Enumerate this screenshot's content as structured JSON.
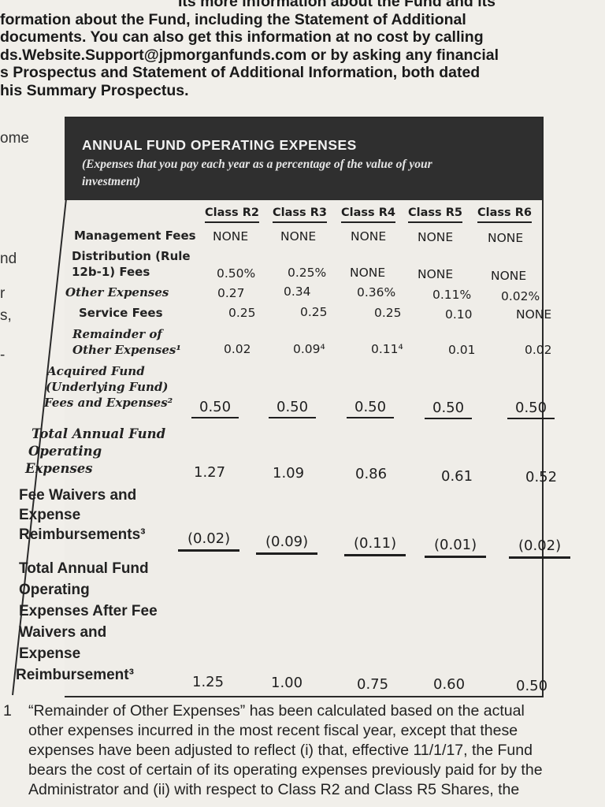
{
  "intro_lines": [
    "Its more information about the Fund and its",
    "formation about the Fund, including the Statement of Additional",
    "documents. You can also get this information at no cost by calling",
    "ds.Website.Support@jpmorganfunds.com or by asking any financial",
    "s Prospectus and Statement of Additional Information, both dated",
    "his Summary Prospectus."
  ],
  "left_fragments": [
    "ome",
    "nd",
    "r",
    "s,",
    "-"
  ],
  "table": {
    "title": "ANNUAL FUND OPERATING EXPENSES",
    "subtitle": "(Expenses that you pay each year as a percentage of the value of your investment)",
    "classes": [
      "Class R2",
      "Class R3",
      "Class R4",
      "Class R5",
      "Class R6"
    ],
    "rows": {
      "management_fees": {
        "label": "Management Fees",
        "values": [
          "NONE",
          "NONE",
          "NONE",
          "NONE",
          "NONE"
        ]
      },
      "distribution_fees": {
        "label_1": "Distribution (Rule",
        "label_2": "12b-1) Fees",
        "values": [
          "0.50%",
          "0.25%",
          "NONE",
          "NONE",
          "NONE"
        ]
      },
      "other_expenses": {
        "label": "Other Expenses",
        "values": [
          "0.27",
          "0.34",
          "0.36%",
          "0.11%",
          "0.02%"
        ]
      },
      "service_fees": {
        "label": "Service Fees",
        "values": [
          "0.25",
          "0.25",
          "0.25",
          "0.10",
          "NONE"
        ]
      },
      "remainder_other": {
        "label_1": "Remainder of",
        "label_2": "Other Expenses¹",
        "values": [
          "0.02",
          "0.09⁴",
          "0.11⁴",
          "0.01",
          "0.02"
        ]
      },
      "acquired_fund": {
        "label_1": "Acquired Fund",
        "label_2": "(Underlying Fund)",
        "label_3": "Fees and Expenses²",
        "values": [
          "0.50",
          "0.50",
          "0.50",
          "0.50",
          "0.50"
        ]
      },
      "total_annual": {
        "label_1": "Total Annual Fund",
        "label_2": "Operating",
        "label_3": "Expenses",
        "values": [
          "1.27",
          "1.09",
          "0.86",
          "0.61",
          "0.52"
        ]
      },
      "fee_waivers": {
        "label_1": "Fee Waivers and",
        "label_2": "Expense",
        "label_3": "Reimbursements³",
        "values": [
          "(0.02)",
          "(0.09)",
          "(0.11)",
          "(0.01)",
          "(0.02)"
        ]
      },
      "total_after": {
        "label_1": "Total Annual Fund",
        "label_2": "Operating",
        "label_3": "Expenses After Fee",
        "label_4": "Waivers and",
        "label_5": "Expense",
        "label_6": "Reimbursement³",
        "values": [
          "1.25",
          "1.00",
          "0.75",
          "0.60",
          "0.50"
        ]
      }
    }
  },
  "footnote": {
    "number": "1",
    "lines": [
      "“Remainder of Other Expenses” has been calculated based on the actual",
      "other expenses incurred in the most recent fiscal year, except that these",
      "expenses have been adjusted to reflect (i) that, effective 11/1/17, the Fund",
      "bears the cost of certain of its operating expenses previously paid for by the",
      "Administrator and (ii) with respect to Class R2 and Class R5 Shares, the"
    ]
  }
}
